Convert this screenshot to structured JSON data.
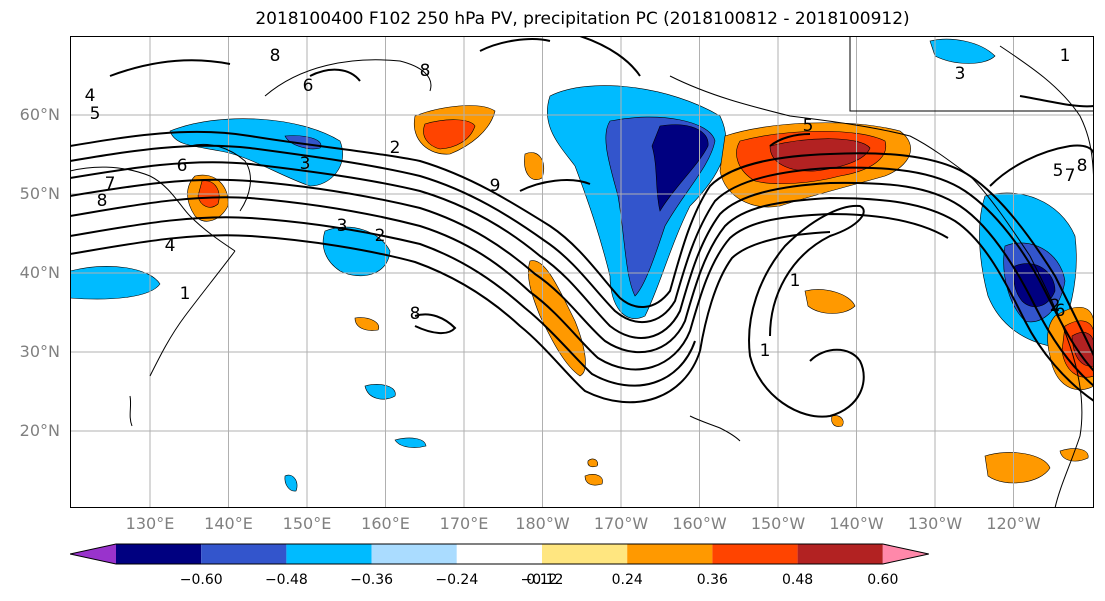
{
  "title": "2018100400 F102 250 hPa PV, precipitation PC (2018100812 - 2018100912)",
  "map": {
    "lat_labels": [
      {
        "text": "60°N",
        "lat": 60
      },
      {
        "text": "50°N",
        "lat": 50
      },
      {
        "text": "40°N",
        "lat": 40
      },
      {
        "text": "30°N",
        "lat": 30
      },
      {
        "text": "20°N",
        "lat": 20
      }
    ],
    "lon_labels": [
      {
        "text": "130°E",
        "lon": 130
      },
      {
        "text": "140°E",
        "lon": 140
      },
      {
        "text": "150°E",
        "lon": 150
      },
      {
        "text": "160°E",
        "lon": 160
      },
      {
        "text": "170°E",
        "lon": 170
      },
      {
        "text": "180°W",
        "lon": 180
      },
      {
        "text": "170°W",
        "lon": 190
      },
      {
        "text": "160°W",
        "lon": 200
      },
      {
        "text": "150°W",
        "lon": 210
      },
      {
        "text": "140°W",
        "lon": 220
      },
      {
        "text": "130°W",
        "lon": 230
      },
      {
        "text": "120°W",
        "lon": 240
      }
    ],
    "contour_labels": [
      "8",
      "6",
      "8",
      "3",
      "2",
      "4",
      "5",
      "6",
      "7",
      "8",
      "4",
      "1",
      "3",
      "2",
      "9",
      "8",
      "1",
      "5",
      "1",
      "2",
      "8",
      "7",
      "5",
      "6",
      "3",
      "1"
    ],
    "colors": {
      "fill_neg_extreme": "#9933cc",
      "fill_neg3": "#000080",
      "fill_neg2": "#3355cc",
      "fill_neg1": "#00bbff",
      "fill_neg0": "#aadcff",
      "fill_pos0": "#ffe680",
      "fill_pos1": "#ff9900",
      "fill_pos2": "#ff4400",
      "fill_pos3": "#b22222",
      "fill_pos_extreme": "#ff88aa"
    }
  },
  "colorbar": {
    "tick_labels": [
      "−0.60",
      "−0.48",
      "−0.36",
      "−0.24",
      "−0.12",
      "0.12",
      "0.24",
      "0.36",
      "0.48",
      "0.60"
    ],
    "segment_colors": [
      "#000080",
      "#3355cc",
      "#00bbff",
      "#aadcff",
      "#ffffff",
      "#ffe680",
      "#ff9900",
      "#ff4400",
      "#b22222"
    ],
    "extend_low_color": "#9933cc",
    "extend_high_color": "#ff88aa"
  }
}
